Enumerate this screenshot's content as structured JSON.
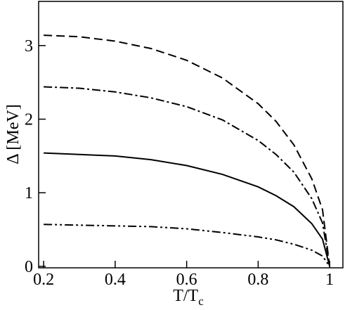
{
  "chart_data": {
    "type": "line",
    "xlabel": {
      "text": "T/T",
      "subscript": "c"
    },
    "ylabel": "Δ [MeV]",
    "x": [
      0.2,
      0.3,
      0.4,
      0.5,
      0.6,
      0.7,
      0.8,
      0.85,
      0.9,
      0.95,
      0.98,
      1.0
    ],
    "series": [
      {
        "color": "#000000",
        "dash": "12,6",
        "values": [
          3.14,
          3.12,
          3.06,
          2.96,
          2.8,
          2.56,
          2.21,
          1.97,
          1.65,
          1.19,
          0.77,
          0
        ]
      },
      {
        "color": "#000000",
        "dash": "12,4,3,4",
        "values": [
          2.44,
          2.42,
          2.37,
          2.29,
          2.17,
          1.99,
          1.71,
          1.52,
          1.28,
          0.92,
          0.59,
          0
        ]
      },
      {
        "color": "#000000",
        "dash": "none",
        "values": [
          1.54,
          1.52,
          1.5,
          1.45,
          1.37,
          1.25,
          1.08,
          0.96,
          0.81,
          0.58,
          0.37,
          0
        ]
      },
      {
        "color": "#000000",
        "dash": "12,4,3,4,3,4",
        "values": [
          0.57,
          0.56,
          0.55,
          0.54,
          0.51,
          0.46,
          0.4,
          0.36,
          0.3,
          0.22,
          0.14,
          0
        ]
      }
    ],
    "xlim": [
      0.186,
      1.037
    ],
    "ylim": [
      -0.02,
      3.6
    ],
    "xticks": [
      0.2,
      0.4,
      0.6,
      0.8,
      1
    ],
    "yticks": [
      0,
      1,
      2,
      3
    ]
  }
}
